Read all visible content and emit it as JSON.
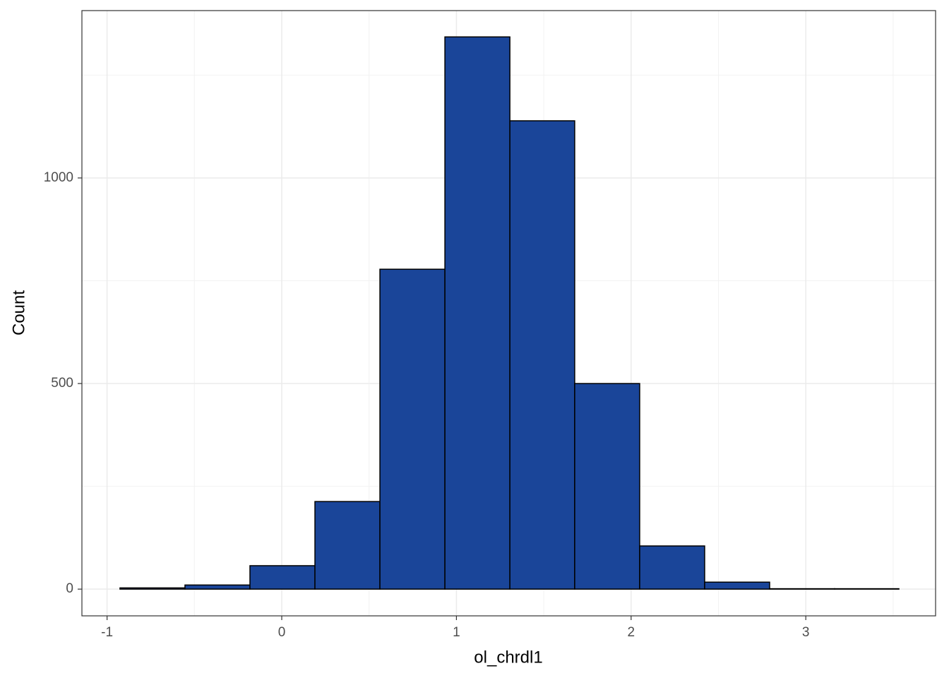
{
  "chart_data": {
    "type": "histogram",
    "x_label": "ol_chrdl1",
    "y_label": "Count",
    "bins": [
      -0.926,
      -0.554,
      -0.182,
      0.19,
      0.562,
      0.934,
      1.306,
      1.677,
      2.049,
      2.421,
      2.793,
      3.165,
      3.533
    ],
    "counts": [
      3,
      10,
      57,
      213,
      778,
      1343,
      1139,
      500,
      105,
      17,
      1,
      1
    ],
    "color": "#1a4599",
    "edge_color": "#000000",
    "xlim": [
      -1.144,
      3.743
    ],
    "xticks": [
      -1,
      0,
      1,
      2,
      3
    ],
    "x_minor_ticks": [
      -0.5,
      0.5,
      1.5,
      2.5,
      3.5
    ],
    "ylim": [
      -65,
      1407
    ],
    "yticks": [
      0,
      500,
      1000
    ],
    "y_minor_ticks": [
      250,
      750,
      1250
    ],
    "grid": true
  }
}
